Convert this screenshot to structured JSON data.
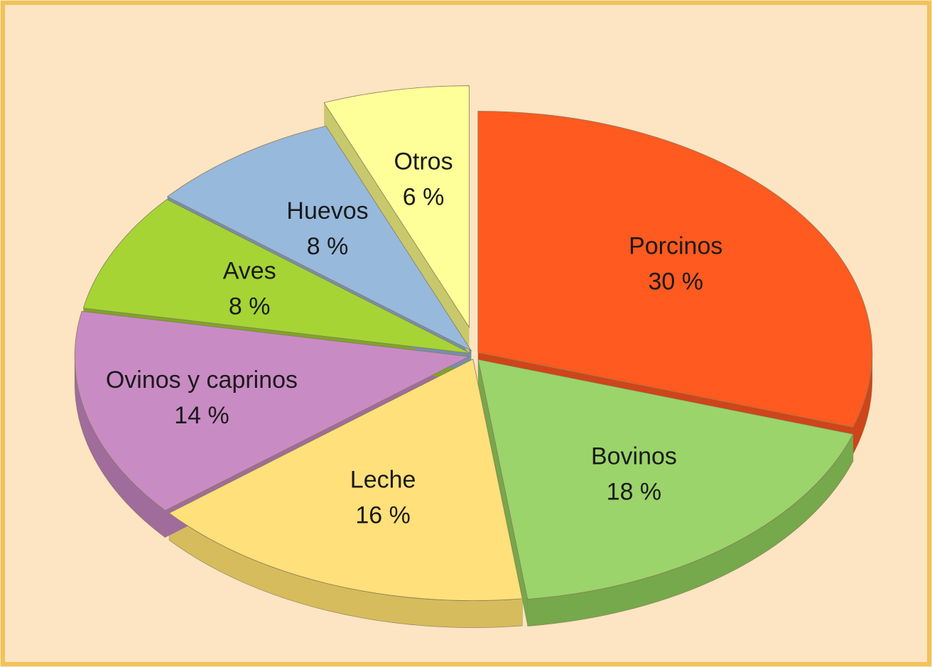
{
  "chart_data": {
    "type": "pie",
    "categories": [
      "Porcinos",
      "Bovinos",
      "Leche",
      "Ovinos y caprinos",
      "Aves",
      "Huevos",
      "Otros"
    ],
    "values": [
      30,
      18,
      16,
      14,
      8,
      8,
      6
    ],
    "value_labels": [
      "30 %",
      "18 %",
      "16 %",
      "14 %",
      "8 %",
      "8 %",
      "6 %"
    ],
    "colors": [
      "#ff5a1f",
      "#9bd46a",
      "#ffe07a",
      "#c98bc4",
      "#a6d435",
      "#97b9dc",
      "#ffff99"
    ],
    "side_colors": [
      "#cf4418",
      "#76a84c",
      "#d6bc5c",
      "#a06c9c",
      "#7fa42a",
      "#7490ad",
      "#c8c86c"
    ]
  }
}
